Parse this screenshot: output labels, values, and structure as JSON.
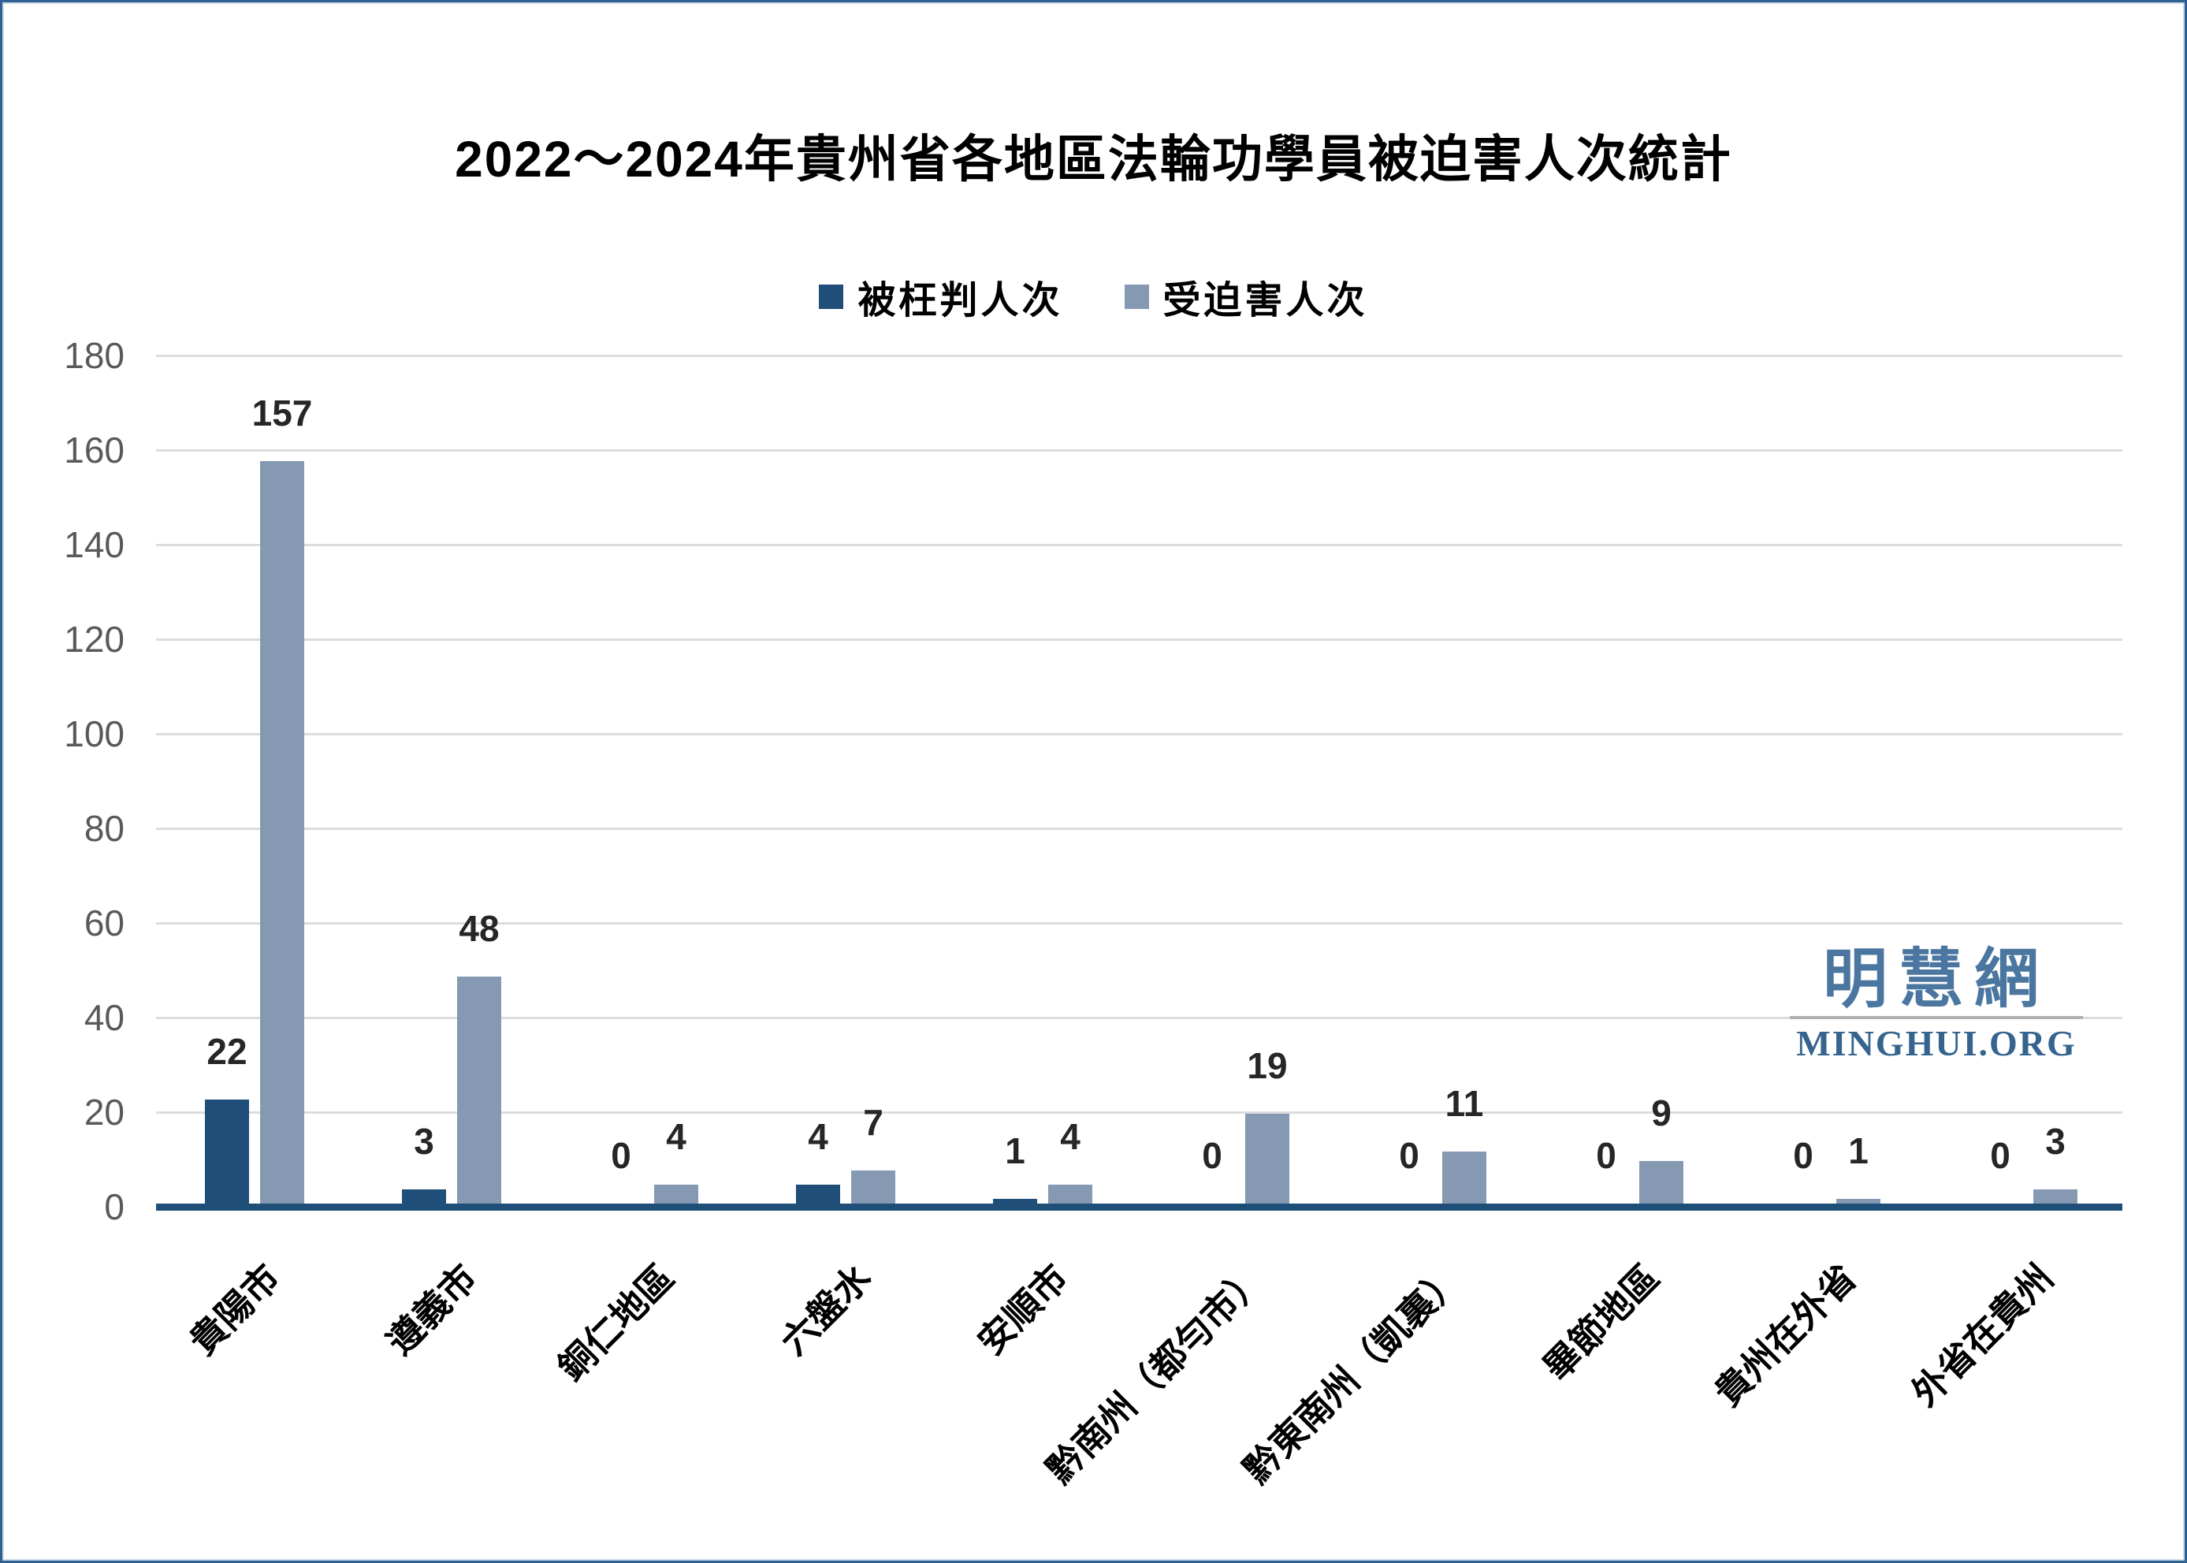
{
  "title": "2022～2024年貴州省各地區法輪功學員被迫害人次統計",
  "watermark": {
    "cjk": "明慧網",
    "latin": "MINGHUI.ORG",
    "accent_color": "#4a76a0"
  },
  "colors": {
    "series1": "#1f4e79",
    "series2": "#8699b3",
    "axis": "#1f4e79",
    "grid": "#dcdcdc",
    "ytick_text": "#595959",
    "value_text": "#262626",
    "page_border": "#2e6091"
  },
  "chart_data": {
    "type": "bar",
    "title": "2022～2024年貴州省各地區法輪功學員被迫害人次統計",
    "categories": [
      "貴陽市",
      "遵義市",
      "銅仁地區",
      "六盤水",
      "安順市",
      "黔南州（都勻市）",
      "黔東南州（凱裏）",
      "畢節地區",
      "貴州在外省",
      "外省在貴州"
    ],
    "series": [
      {
        "name": "被枉判人次",
        "color": "#1f4e79",
        "values": [
          22,
          3,
          0,
          4,
          1,
          0,
          0,
          0,
          0,
          0
        ]
      },
      {
        "name": "受迫害人次",
        "color": "#8699b3",
        "values": [
          157,
          48,
          4,
          7,
          4,
          19,
          11,
          9,
          1,
          3
        ]
      }
    ],
    "xlabel": "",
    "ylabel": "",
    "ylim": [
      0,
      180
    ],
    "ytick_step": 20,
    "ytick_labels": [
      "0",
      "20",
      "40",
      "60",
      "80",
      "100",
      "120",
      "140",
      "160",
      "180"
    ],
    "grid": true,
    "legend_position": "top",
    "value_labels_shown": true
  }
}
